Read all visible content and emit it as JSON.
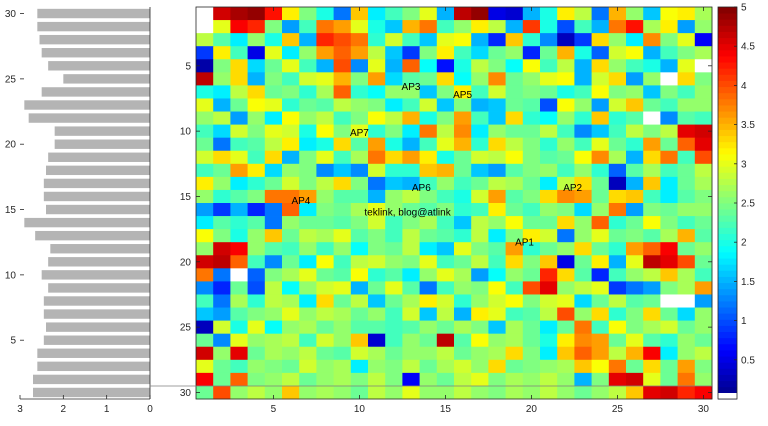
{
  "chart_data": [
    {
      "type": "bar",
      "orientation": "horizontal",
      "categories": [
        1,
        2,
        3,
        4,
        5,
        6,
        7,
        8,
        9,
        10,
        11,
        12,
        13,
        14,
        15,
        16,
        17,
        18,
        19,
        20,
        21,
        22,
        23,
        24,
        25,
        26,
        27,
        28,
        29,
        30
      ],
      "values": [
        2.7,
        2.7,
        2.6,
        2.6,
        2.45,
        2.4,
        2.45,
        2.45,
        2.35,
        2.5,
        2.35,
        2.3,
        2.65,
        2.9,
        2.4,
        2.45,
        2.45,
        2.4,
        2.35,
        2.2,
        2.2,
        2.8,
        2.9,
        2.5,
        2.0,
        2.35,
        2.5,
        2.55,
        2.6,
        2.6
      ],
      "xlim": [
        3,
        0
      ],
      "ylim": [
        1,
        30
      ],
      "xticks": [
        "3",
        "2",
        "1",
        "0"
      ],
      "yticks": [
        "5",
        "10",
        "15",
        "20",
        "25",
        "30"
      ],
      "bar_color": "#b4b4b4"
    },
    {
      "type": "heatmap",
      "rows": 30,
      "cols": 30,
      "clim": [
        0,
        5
      ],
      "colormap": "jet",
      "xticks": [
        "5",
        "10",
        "15",
        "20",
        "25",
        "30"
      ],
      "yticks": [
        "5",
        "10",
        "15",
        "20",
        "25",
        "30"
      ],
      "colorbar_ticks": [
        "0.5",
        "1",
        "1.5",
        "2",
        "2.5",
        "3",
        "3.5",
        "4",
        "4.5",
        "5"
      ],
      "values": [
        [
          0.0,
          4.6,
          4.8,
          4.9,
          4.3,
          3.2,
          2.5,
          2.0,
          1.2,
          3.4,
          1.8,
          2.2,
          2.5,
          3.0,
          1.5,
          4.7,
          4.9,
          0.5,
          0.4,
          1.5,
          2.0,
          3.2,
          2.8,
          1.2,
          3.5,
          2.6,
          1.6,
          3.1,
          3.2,
          2.7
        ],
        [
          0.0,
          3.0,
          4.4,
          4.2,
          2.5,
          1.4,
          2.2,
          3.8,
          3.6,
          3.0,
          2.0,
          1.6,
          3.5,
          3.8,
          2.2,
          2.6,
          3.2,
          2.8,
          1.5,
          4.1,
          2.0,
          1.0,
          2.2,
          1.5,
          3.8,
          4.3,
          2.7,
          3.2,
          1.4,
          2.6
        ],
        [
          2.8,
          2.3,
          1.8,
          2.6,
          2.0,
          3.4,
          1.5,
          4.2,
          4.0,
          3.8,
          2.1,
          2.9,
          2.2,
          1.6,
          3.0,
          3.1,
          1.5,
          0.8,
          3.4,
          2.1,
          1.3,
          0.3,
          0.9,
          3.3,
          2.6,
          1.8,
          3.7,
          2.5,
          3.0,
          0.6
        ],
        [
          0.9,
          3.2,
          2.2,
          0.5,
          3.0,
          1.8,
          2.6,
          3.6,
          3.9,
          3.6,
          2.8,
          1.6,
          0.9,
          2.5,
          3.2,
          2.2,
          1.7,
          2.4,
          2.6,
          0.8,
          2.4,
          3.5,
          2.0,
          1.1,
          2.9,
          3.1,
          1.5,
          2.2,
          2.5,
          2.7
        ],
        [
          0.2,
          2.5,
          3.3,
          1.7,
          2.4,
          3.0,
          2.2,
          1.5,
          4.0,
          1.3,
          3.0,
          1.5,
          3.9,
          1.9,
          0.7,
          2.0,
          2.8,
          2.5,
          1.9,
          3.1,
          2.2,
          2.8,
          1.5,
          3.3,
          2.6,
          2.2,
          2.0,
          1.5,
          3.0,
          0.0
        ],
        [
          4.7,
          2.6,
          3.3,
          1.5,
          2.5,
          2.2,
          2.9,
          3.0,
          3.5,
          2.5,
          3.6,
          1.7,
          2.3,
          2.4,
          3.3,
          1.9,
          2.6,
          3.7,
          2.4,
          2.6,
          3.0,
          3.1,
          1.5,
          2.9,
          3.3,
          1.4,
          2.6,
          0.0,
          3.3,
          2.5
        ],
        [
          2.0,
          1.8,
          2.8,
          3.3,
          2.4,
          2.5,
          2.1,
          2.7,
          3.9,
          2.1,
          1.9,
          2.6,
          2.6,
          1.6,
          2.5,
          3.2,
          2.2,
          2.9,
          2.4,
          2.5,
          2.4,
          2.0,
          2.2,
          3.1,
          2.5,
          2.6,
          1.6,
          2.5,
          2.2,
          2.6
        ],
        [
          3.0,
          1.5,
          2.4,
          3.1,
          3.0,
          2.1,
          2.4,
          2.3,
          2.8,
          2.6,
          2.5,
          1.8,
          2.2,
          2.9,
          1.6,
          2.5,
          1.5,
          1.6,
          2.4,
          2.3,
          1.0,
          3.1,
          2.6,
          1.4,
          2.9,
          3.4,
          2.4,
          2.2,
          2.6,
          2.6
        ],
        [
          2.6,
          2.8,
          1.4,
          2.6,
          1.8,
          3.1,
          2.6,
          2.8,
          2.2,
          2.5,
          3.1,
          2.8,
          3.5,
          2.0,
          2.5,
          3.6,
          2.2,
          1.6,
          3.3,
          2.1,
          1.9,
          2.6,
          2.1,
          3.4,
          2.1,
          2.3,
          0.0,
          1.3,
          2.3,
          2.2
        ],
        [
          2.2,
          1.7,
          2.9,
          2.5,
          3.0,
          2.9,
          2.0,
          3.1,
          2.5,
          3.0,
          2.1,
          2.5,
          1.8,
          3.8,
          2.8,
          3.7,
          1.8,
          2.6,
          2.4,
          2.4,
          2.8,
          2.2,
          1.3,
          1.6,
          2.2,
          2.8,
          2.5,
          2.8,
          4.5,
          4.6
        ],
        [
          2.4,
          1.2,
          2.2,
          2.3,
          2.8,
          3.2,
          1.8,
          2.0,
          3.3,
          2.3,
          3.6,
          2.0,
          1.5,
          2.2,
          3.0,
          3.5,
          2.1,
          3.3,
          2.8,
          2.5,
          2.1,
          2.6,
          2.2,
          3.0,
          2.4,
          2.1,
          3.6,
          2.4,
          3.9,
          4.5
        ],
        [
          2.9,
          3.3,
          3.0,
          2.2,
          3.3,
          1.5,
          2.5,
          3.0,
          2.2,
          2.7,
          3.8,
          3.3,
          3.6,
          3.2,
          2.0,
          2.4,
          2.9,
          2.8,
          3.1,
          2.5,
          2.3,
          2.4,
          3.1,
          3.7,
          2.7,
          1.5,
          3.3,
          3.8,
          2.2,
          4.0
        ],
        [
          2.2,
          2.4,
          3.6,
          3.2,
          1.7,
          2.6,
          2.5,
          1.3,
          1.6,
          1.3,
          2.9,
          2.1,
          2.1,
          3.4,
          3.5,
          2.4,
          1.6,
          1.4,
          2.3,
          2.5,
          2.6,
          2.2,
          2.6,
          2.1,
          1.1,
          2.3,
          2.7,
          2.2,
          2.4,
          2.8
        ],
        [
          3.2,
          2.6,
          1.8,
          2.1,
          2.4,
          2.9,
          2.5,
          2.8,
          3.3,
          2.5,
          1.2,
          1.6,
          1.5,
          2.2,
          2.6,
          2.2,
          2.4,
          2.8,
          2.7,
          2.4,
          1.8,
          2.8,
          3.3,
          2.4,
          0.3,
          1.5,
          3.4,
          1.8,
          2.4,
          2.7
        ],
        [
          2.6,
          2.1,
          2.3,
          2.5,
          3.8,
          3.8,
          3.6,
          2.6,
          2.3,
          2.3,
          1.5,
          2.6,
          2.8,
          2.5,
          2.2,
          2.0,
          2.9,
          3.6,
          2.3,
          2.5,
          3.3,
          3.7,
          3.6,
          2.4,
          3.3,
          3.4,
          2.2,
          1.8,
          2.3,
          2.5
        ],
        [
          1.4,
          0.9,
          1.5,
          0.8,
          1.2,
          3.9,
          1.8,
          2.5,
          2.4,
          2.7,
          3.0,
          2.6,
          2.4,
          2.3,
          2.5,
          2.1,
          2.2,
          3.2,
          2.4,
          2.2,
          2.6,
          2.5,
          1.7,
          2.6,
          3.8,
          1.4,
          2.5,
          2.4,
          2.6,
          2.6
        ],
        [
          1.8,
          2.3,
          2.1,
          2.3,
          1.2,
          2.6,
          2.4,
          2.4,
          2.3,
          2.5,
          2.9,
          2.2,
          2.5,
          2.7,
          2.2,
          1.6,
          2.8,
          2.6,
          3.1,
          2.4,
          2.4,
          3.3,
          2.6,
          3.9,
          2.1,
          2.4,
          3.1,
          2.5,
          2.2,
          2.4
        ],
        [
          3.1,
          2.5,
          2.0,
          2.6,
          3.4,
          2.4,
          2.8,
          2.7,
          3.0,
          2.3,
          2.5,
          2.2,
          2.8,
          2.4,
          2.3,
          2.1,
          2.8,
          1.8,
          2.5,
          3.2,
          2.9,
          1.2,
          2.6,
          3.0,
          2.4,
          2.5,
          2.3,
          2.7,
          3.5,
          2.3
        ],
        [
          2.6,
          4.6,
          4.4,
          2.6,
          2.3,
          2.2,
          2.6,
          2.2,
          2.6,
          1.9,
          2.5,
          2.4,
          2.8,
          1.8,
          1.6,
          3.0,
          2.5,
          2.3,
          3.6,
          2.1,
          2.4,
          2.6,
          3.3,
          2.4,
          2.1,
          3.6,
          3.9,
          4.4,
          2.4,
          2.6
        ],
        [
          4.6,
          4.7,
          3.9,
          2.2,
          1.3,
          2.4,
          1.8,
          3.1,
          2.2,
          2.8,
          2.9,
          2.6,
          2.5,
          3.0,
          2.2,
          2.4,
          2.8,
          2.2,
          3.3,
          2.5,
          3.4,
          0.5,
          2.4,
          3.2,
          1.5,
          3.0,
          4.7,
          4.5,
          4.0,
          2.4
        ],
        [
          3.8,
          1.2,
          0.0,
          1.1,
          2.5,
          2.7,
          3.0,
          2.4,
          2.3,
          3.1,
          2.1,
          2.3,
          1.8,
          2.6,
          3.0,
          2.7,
          1.4,
          1.9,
          2.6,
          2.4,
          4.2,
          3.3,
          2.3,
          0.8,
          2.2,
          2.6,
          2.8,
          3.4,
          2.7,
          2.2
        ],
        [
          1.3,
          0.8,
          2.4,
          1.0,
          2.8,
          1.9,
          2.6,
          2.9,
          3.0,
          1.5,
          2.4,
          3.0,
          2.3,
          1.2,
          2.2,
          2.6,
          2.5,
          3.1,
          2.2,
          4.0,
          4.5,
          2.6,
          2.8,
          3.0,
          0.9,
          1.2,
          1.4,
          2.5,
          2.7,
          3.6
        ],
        [
          2.2,
          1.2,
          2.7,
          2.1,
          2.8,
          2.7,
          1.8,
          3.3,
          2.4,
          2.8,
          1.6,
          2.4,
          2.7,
          3.2,
          2.9,
          2.1,
          2.6,
          2.9,
          3.1,
          2.5,
          2.9,
          3.0,
          1.7,
          2.4,
          2.8,
          2.3,
          2.4,
          0.0,
          0.0,
          1.4
        ],
        [
          1.6,
          1.4,
          2.3,
          2.5,
          2.6,
          3.0,
          2.6,
          2.8,
          2.7,
          2.4,
          2.6,
          2.2,
          2.9,
          1.6,
          2.8,
          1.5,
          3.2,
          3.0,
          2.2,
          2.3,
          2.8,
          4.0,
          2.6,
          3.3,
          2.1,
          2.5,
          3.3,
          2.4,
          1.7,
          2.6
        ],
        [
          0.3,
          2.9,
          2.0,
          3.0,
          1.9,
          2.6,
          2.7,
          2.4,
          2.6,
          2.3,
          2.3,
          2.2,
          2.3,
          2.6,
          2.4,
          2.7,
          2.5,
          1.6,
          2.7,
          2.4,
          1.8,
          2.4,
          3.8,
          2.2,
          3.1,
          2.5,
          2.7,
          2.9,
          2.4,
          2.6
        ],
        [
          2.4,
          1.3,
          3.0,
          2.6,
          2.7,
          2.8,
          2.2,
          2.9,
          2.6,
          3.4,
          0.4,
          2.2,
          2.6,
          2.4,
          4.7,
          2.3,
          3.1,
          2.6,
          2.7,
          2.4,
          2.0,
          3.2,
          3.7,
          3.6,
          2.4,
          3.0,
          2.3,
          2.1,
          2.6,
          2.4
        ],
        [
          4.6,
          2.6,
          4.5,
          2.4,
          2.7,
          2.6,
          2.8,
          2.4,
          2.3,
          2.9,
          2.7,
          2.4,
          2.6,
          2.6,
          2.8,
          2.4,
          2.6,
          2.7,
          3.3,
          2.5,
          1.8,
          3.4,
          3.9,
          3.6,
          2.8,
          3.5,
          4.4,
          1.8,
          2.6,
          2.8
        ],
        [
          3.0,
          2.4,
          2.2,
          2.6,
          2.5,
          2.4,
          2.9,
          2.6,
          2.7,
          1.8,
          2.6,
          2.5,
          2.8,
          2.4,
          2.7,
          2.9,
          2.6,
          3.3,
          2.4,
          2.5,
          2.6,
          2.7,
          3.4,
          3.1,
          3.8,
          2.4,
          3.3,
          2.4,
          3.6,
          2.5
        ],
        [
          4.4,
          2.4,
          3.9,
          2.5,
          2.6,
          2.8,
          2.4,
          2.6,
          2.7,
          2.5,
          2.8,
          2.5,
          0.6,
          2.6,
          2.4,
          2.8,
          3.0,
          2.5,
          2.7,
          2.6,
          2.8,
          2.6,
          1.5,
          2.5,
          4.5,
          4.6,
          3.0,
          2.4,
          3.8,
          2.6
        ],
        [
          2.4,
          4.0,
          2.6,
          2.8,
          2.6,
          3.4,
          2.6,
          2.7,
          2.6,
          2.4,
          2.8,
          2.6,
          3.0,
          2.6,
          2.6,
          2.8,
          2.6,
          2.5,
          2.7,
          2.6,
          2.8,
          2.6,
          2.4,
          2.6,
          2.8,
          3.4,
          4.5,
          4.6,
          4.2,
          4.4
        ]
      ],
      "annotations": [
        {
          "label": "AP3",
          "x": 13.0,
          "y": 6.6
        },
        {
          "label": "AP5",
          "x": 16.0,
          "y": 7.2
        },
        {
          "label": "AP7",
          "x": 10.0,
          "y": 10.1
        },
        {
          "label": "AP6",
          "x": 13.6,
          "y": 14.3
        },
        {
          "label": "AP2",
          "x": 22.4,
          "y": 14.3
        },
        {
          "label": "AP4",
          "x": 6.6,
          "y": 15.3
        },
        {
          "label": "teklink, blog@atlink",
          "x": 12.8,
          "y": 16.2
        },
        {
          "label": "AP1",
          "x": 19.6,
          "y": 18.5
        }
      ]
    }
  ]
}
